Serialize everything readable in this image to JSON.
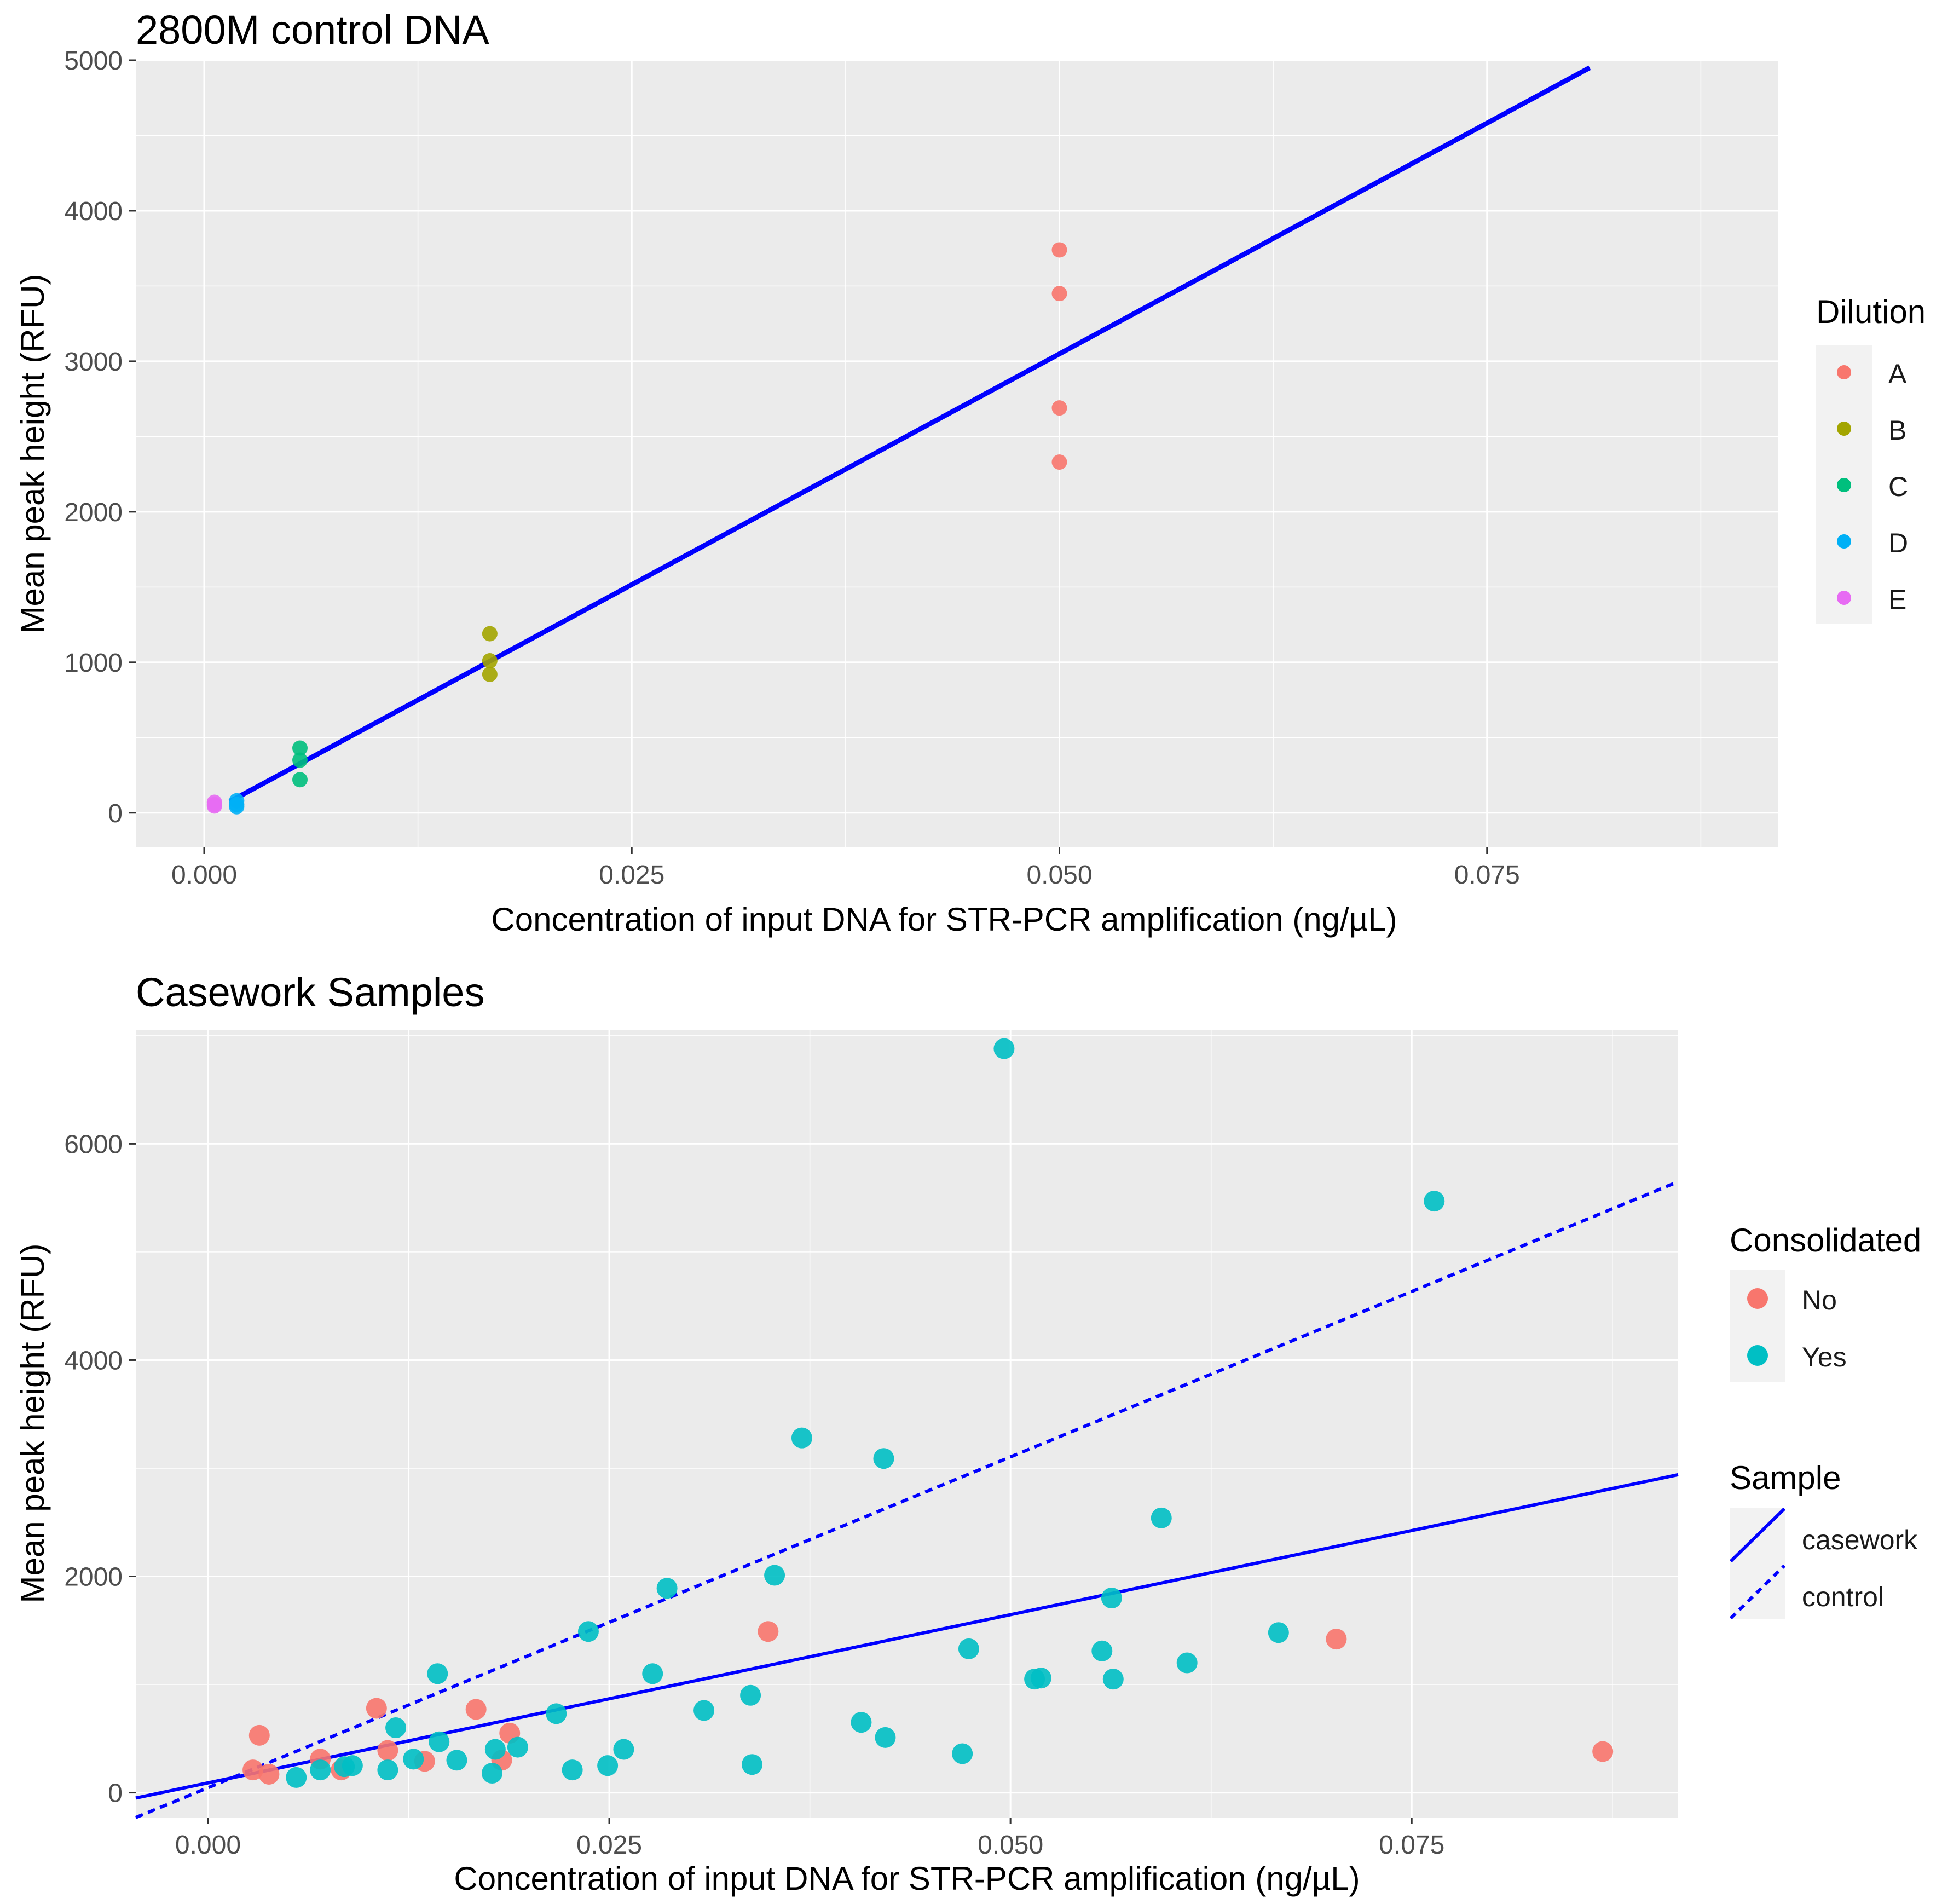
{
  "chart_data": [
    {
      "type": "scatter",
      "title": "2800M control DNA",
      "xlabel": "Concentration of input DNA for STR-PCR amplification (ng/µL)",
      "ylabel": "Mean peak height (RFU)",
      "xlim": [
        -0.004,
        0.092
      ],
      "ylim": [
        -230,
        5000
      ],
      "xticks": [
        0.0,
        0.025,
        0.05,
        0.075
      ],
      "xtick_labels": [
        "0.000",
        "0.025",
        "0.050",
        "0.075"
      ],
      "yticks": [
        0,
        1000,
        2000,
        3000,
        4000,
        5000
      ],
      "ytick_labels": [
        "0",
        "1000",
        "2000",
        "3000",
        "4000",
        "5000"
      ],
      "legend": {
        "title": "Dilution",
        "position": "right",
        "entries": [
          {
            "label": "A",
            "color": "#F8766D"
          },
          {
            "label": "B",
            "color": "#A3A500"
          },
          {
            "label": "C",
            "color": "#00BF7D"
          },
          {
            "label": "D",
            "color": "#00B0F6"
          },
          {
            "label": "E",
            "color": "#E76BF3"
          }
        ]
      },
      "series": [
        {
          "name": "A",
          "color": "#F8766D",
          "points": [
            [
              0.05,
              3740
            ],
            [
              0.05,
              3450
            ],
            [
              0.05,
              2690
            ],
            [
              0.05,
              2330
            ]
          ]
        },
        {
          "name": "B",
          "color": "#A3A500",
          "points": [
            [
              0.0167,
              1190
            ],
            [
              0.0167,
              1010
            ],
            [
              0.0167,
              920
            ]
          ]
        },
        {
          "name": "C",
          "color": "#00BF7D",
          "points": [
            [
              0.0056,
              430
            ],
            [
              0.0056,
              350
            ],
            [
              0.0056,
              220
            ]
          ]
        },
        {
          "name": "D",
          "color": "#00B0F6",
          "points": [
            [
              0.0019,
              80
            ],
            [
              0.0019,
              55
            ],
            [
              0.0019,
              40
            ]
          ]
        },
        {
          "name": "E",
          "color": "#E76BF3",
          "points": [
            [
              0.0006,
              70
            ],
            [
              0.0006,
              55
            ],
            [
              0.0006,
              45
            ]
          ]
        }
      ],
      "fit_line": {
        "name": "control fit",
        "color": "#0000FF",
        "x": [
          0.0015,
          0.081
        ],
        "y": [
          75,
          4950
        ]
      }
    },
    {
      "type": "scatter",
      "title": "Casework Samples",
      "xlabel": "Concentration of input DNA for STR-PCR amplification (ng/µL)",
      "ylabel": "Mean peak height (RFU)",
      "xlim": [
        -0.0045,
        0.0916
      ],
      "ylim": [
        -230,
        7050
      ],
      "xticks": [
        0.0,
        0.025,
        0.05,
        0.075
      ],
      "xtick_labels": [
        "0.000",
        "0.025",
        "0.050",
        "0.075"
      ],
      "yticks": [
        0,
        2000,
        4000,
        6000
      ],
      "ytick_labels": [
        "0",
        "2000",
        "4000",
        "6000"
      ],
      "legend_consolidated": {
        "title": "Consolidated",
        "entries": [
          {
            "label": "No",
            "color": "#F8766D"
          },
          {
            "label": "Yes",
            "color": "#00BFC4"
          }
        ]
      },
      "legend_sample": {
        "title": "Sample",
        "entries": [
          {
            "label": "casework",
            "color": "#0000FF",
            "dash": "solid"
          },
          {
            "label": "control",
            "color": "#0000FF",
            "dash": "dashed"
          }
        ]
      },
      "series": [
        {
          "name": "No",
          "color": "#F8766D",
          "points": [
            [
              0.0032,
              530
            ],
            [
              0.0028,
              210
            ],
            [
              0.0038,
              170
            ],
            [
              0.007,
              310
            ],
            [
              0.0083,
              210
            ],
            [
              0.0105,
              780
            ],
            [
              0.0112,
              390
            ],
            [
              0.0135,
              290
            ],
            [
              0.0167,
              770
            ],
            [
              0.0183,
              300
            ],
            [
              0.0188,
              550
            ],
            [
              0.0349,
              1490
            ],
            [
              0.0703,
              1420
            ],
            [
              0.0869,
              380
            ]
          ]
        },
        {
          "name": "Yes",
          "color": "#00BFC4",
          "points": [
            [
              0.0055,
              140
            ],
            [
              0.007,
              210
            ],
            [
              0.0085,
              240
            ],
            [
              0.009,
              250
            ],
            [
              0.0112,
              210
            ],
            [
              0.0117,
              600
            ],
            [
              0.0128,
              310
            ],
            [
              0.0143,
              1100
            ],
            [
              0.0144,
              470
            ],
            [
              0.0155,
              300
            ],
            [
              0.0177,
              180
            ],
            [
              0.0179,
              400
            ],
            [
              0.0193,
              420
            ],
            [
              0.0217,
              730
            ],
            [
              0.0227,
              210
            ],
            [
              0.0237,
              1490
            ],
            [
              0.0249,
              250
            ],
            [
              0.0259,
              400
            ],
            [
              0.0277,
              1100
            ],
            [
              0.0286,
              1890
            ],
            [
              0.0309,
              760
            ],
            [
              0.0338,
              900
            ],
            [
              0.0339,
              260
            ],
            [
              0.0353,
              2010
            ],
            [
              0.037,
              3280
            ],
            [
              0.0407,
              650
            ],
            [
              0.0421,
              3090
            ],
            [
              0.0422,
              510
            ],
            [
              0.047,
              360
            ],
            [
              0.0474,
              1330
            ],
            [
              0.0496,
              6880
            ],
            [
              0.0515,
              1050
            ],
            [
              0.0519,
              1060
            ],
            [
              0.0557,
              1310
            ],
            [
              0.0563,
              1800
            ],
            [
              0.0564,
              1050
            ],
            [
              0.0594,
              2540
            ],
            [
              0.061,
              1200
            ],
            [
              0.0667,
              1480
            ],
            [
              0.0764,
              5470
            ]
          ]
        }
      ],
      "lines": [
        {
          "name": "casework",
          "color": "#0000FF",
          "dash": "solid",
          "x": [
            -0.0045,
            0.0916
          ],
          "y": [
            -50,
            2940
          ]
        },
        {
          "name": "control",
          "color": "#0000FF",
          "dash": "dashed",
          "x": [
            -0.0045,
            0.0916
          ],
          "y": [
            -230,
            5650
          ]
        }
      ]
    }
  ]
}
